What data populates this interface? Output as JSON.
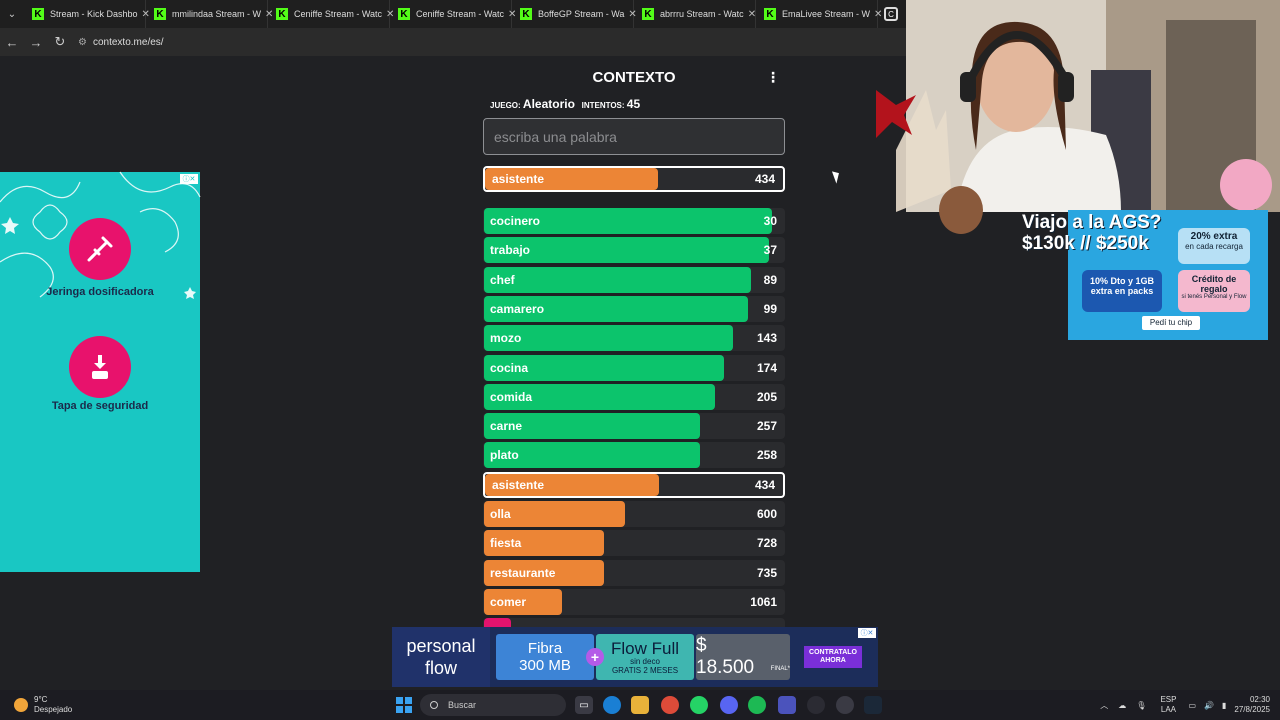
{
  "browser": {
    "tabs": [
      {
        "title": "Stream - Kick Dashbo"
      },
      {
        "title": "mmilindaa Stream - W"
      },
      {
        "title": "Ceniffe Stream - Watc"
      },
      {
        "title": "Ceniffe Stream - Watc"
      },
      {
        "title": "BoffeGP Stream - Wa"
      },
      {
        "title": "abrrru Stream - Watc"
      },
      {
        "title": "EmaLivee Stream - W"
      }
    ],
    "url": "contexto.me/es/"
  },
  "game": {
    "title": "CONTEXTO",
    "game_label": "JUEGO:",
    "game_value": "Aleatorio",
    "attempts_label": "INTENTOS:",
    "attempts_value": "45",
    "input_placeholder": "escriba una palabra",
    "last_guess": {
      "word": "asistente",
      "rank": "434",
      "fill": 0.58,
      "color": "orange"
    },
    "guesses": [
      {
        "word": "cocinero",
        "rank": "30",
        "fill": 0.96,
        "color": "green"
      },
      {
        "word": "trabajo",
        "rank": "37",
        "fill": 0.95,
        "color": "green"
      },
      {
        "word": "chef",
        "rank": "89",
        "fill": 0.89,
        "color": "green"
      },
      {
        "word": "camarero",
        "rank": "99",
        "fill": 0.88,
        "color": "green"
      },
      {
        "word": "mozo",
        "rank": "143",
        "fill": 0.83,
        "color": "green"
      },
      {
        "word": "cocina",
        "rank": "174",
        "fill": 0.8,
        "color": "green"
      },
      {
        "word": "comida",
        "rank": "205",
        "fill": 0.77,
        "color": "green"
      },
      {
        "word": "carne",
        "rank": "257",
        "fill": 0.72,
        "color": "green"
      },
      {
        "word": "plato",
        "rank": "258",
        "fill": 0.72,
        "color": "green"
      },
      {
        "word": "asistente",
        "rank": "434",
        "fill": 0.58,
        "color": "orange",
        "highlight": true
      },
      {
        "word": "olla",
        "rank": "600",
        "fill": 0.47,
        "color": "orange"
      },
      {
        "word": "fiesta",
        "rank": "728",
        "fill": 0.4,
        "color": "orange"
      },
      {
        "word": "restaurante",
        "rank": "735",
        "fill": 0.4,
        "color": "orange"
      },
      {
        "word": "comer",
        "rank": "1061",
        "fill": 0.26,
        "color": "orange"
      },
      {
        "word": "",
        "rank": "",
        "fill": 0.09,
        "color": "pink"
      }
    ]
  },
  "left_ad": {
    "item1": "Jeringa dosificadora",
    "item2": "Tapa de seguridad"
  },
  "bottom_ad": {
    "brand_line1": "personal",
    "brand_line2": "flow",
    "fibra_line1": "Fibra",
    "fibra_line2": "300 MB",
    "plus": "+",
    "flow_line1": "Flow Full",
    "flow_line2": "sin deco",
    "flow_line3": "GRATIS 2 MESES",
    "price": "$ 18.500",
    "price_note": "FINAL*",
    "cta": "CONTRATALO AHORA"
  },
  "overlay_ad": {
    "headline1": "Viajo a la AGS?",
    "headline2": "$130k // $250k",
    "card1_big": "20% extra",
    "card1_small": "en cada recarga",
    "card2_big": "10% Dto y 1GB extra en packs",
    "card3_big": "Crédito de regalo",
    "card3_small": "si tenés Personal y Flow",
    "chip": "Pedí tu chip"
  },
  "taskbar": {
    "temp": "9°C",
    "weather": "Despejado",
    "search": "Buscar",
    "lang1": "ESP",
    "lang2": "LAA",
    "time": "02:30",
    "date": "27/8/2025"
  },
  "colors": {
    "green": "#0cc46c",
    "orange": "#ec8536",
    "pink": "#e3136e",
    "kick": "#53fc18"
  }
}
